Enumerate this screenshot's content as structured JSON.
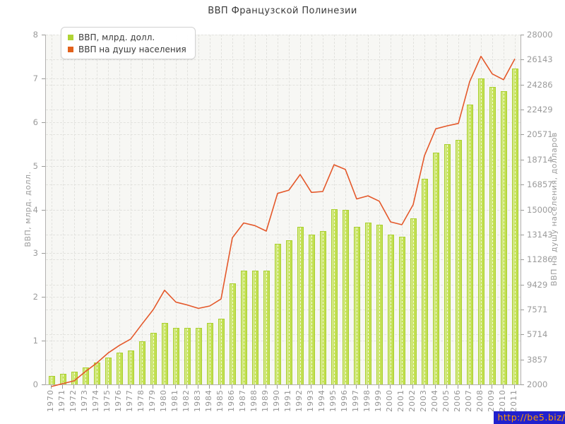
{
  "page": {
    "title": "ВВП Французской Полинезии"
  },
  "legend": {
    "items": [
      {
        "label": "ВВП, млрд. долл.",
        "color": "#b0d435"
      },
      {
        "label": "ВВП на душу населения",
        "color": "#e2611b"
      }
    ]
  },
  "watermark": {
    "text": "http://be5.biz/",
    "background": "#2121ce",
    "color": "#ff9900"
  },
  "chart_data": {
    "type": "bar",
    "title": "ВВП Французской Полинезии",
    "subtitle": "",
    "categories": [
      "1970",
      "1971",
      "1972",
      "1973",
      "1974",
      "1975",
      "1976",
      "1977",
      "1978",
      "1979",
      "1980",
      "1981",
      "1982",
      "1983",
      "1984",
      "1985",
      "1986",
      "1987",
      "1988",
      "1989",
      "1990",
      "1991",
      "1992",
      "1993",
      "1994",
      "1995",
      "1996",
      "1997",
      "1998",
      "1999",
      "2000",
      "2001",
      "2002",
      "2003",
      "2004",
      "2005",
      "2006",
      "2007",
      "2008",
      "2009",
      "2010",
      "2011"
    ],
    "series": [
      {
        "name": "ВВП, млрд. долл.",
        "type": "bar",
        "axis": "left",
        "color": "#c2e052",
        "color_light": "#d8ec92",
        "border_color": "#a9cf2f",
        "values": [
          0.2,
          0.25,
          0.29,
          0.39,
          0.5,
          0.62,
          0.72,
          0.77,
          0.98,
          1.18,
          1.4,
          1.29,
          1.3,
          1.29,
          1.4,
          1.5,
          2.31,
          2.6,
          2.6,
          2.6,
          3.21,
          3.3,
          3.61,
          3.42,
          3.51,
          4.01,
          4.0,
          3.6,
          3.7,
          3.66,
          3.42,
          3.38,
          3.8,
          4.7,
          5.3,
          5.5,
          5.59,
          6.4,
          7.0,
          6.81,
          6.71,
          7.22
        ]
      },
      {
        "name": "ВВП на душу населения",
        "type": "line",
        "axis": "right",
        "color": "#e4582a",
        "values": [
          1850,
          2060,
          2270,
          2960,
          3590,
          4330,
          4900,
          5370,
          6480,
          7560,
          9000,
          8120,
          7910,
          7650,
          7830,
          8350,
          12900,
          14000,
          13800,
          13400,
          16200,
          16440,
          17600,
          16270,
          16340,
          18330,
          17980,
          15790,
          16020,
          15620,
          14080,
          13870,
          15360,
          19000,
          21000,
          21220,
          21400,
          24500,
          26390,
          25080,
          24650,
          26200
        ]
      }
    ],
    "axes": {
      "left": {
        "label": "ВВП, млрд. долл.",
        "min": 0,
        "max": 8,
        "ticks": [
          8,
          7,
          6,
          5,
          4,
          3,
          2,
          1,
          0
        ]
      },
      "right": {
        "label": "ВВП на душу населения, долларов",
        "min": 2000,
        "max": 28000,
        "ticks": [
          28000,
          26143,
          24286,
          22429,
          20571,
          18714,
          16857,
          15000,
          13143,
          11286,
          9429,
          7571,
          5714,
          3857,
          2000
        ]
      }
    },
    "grid": true,
    "legend_position": "top-left"
  }
}
